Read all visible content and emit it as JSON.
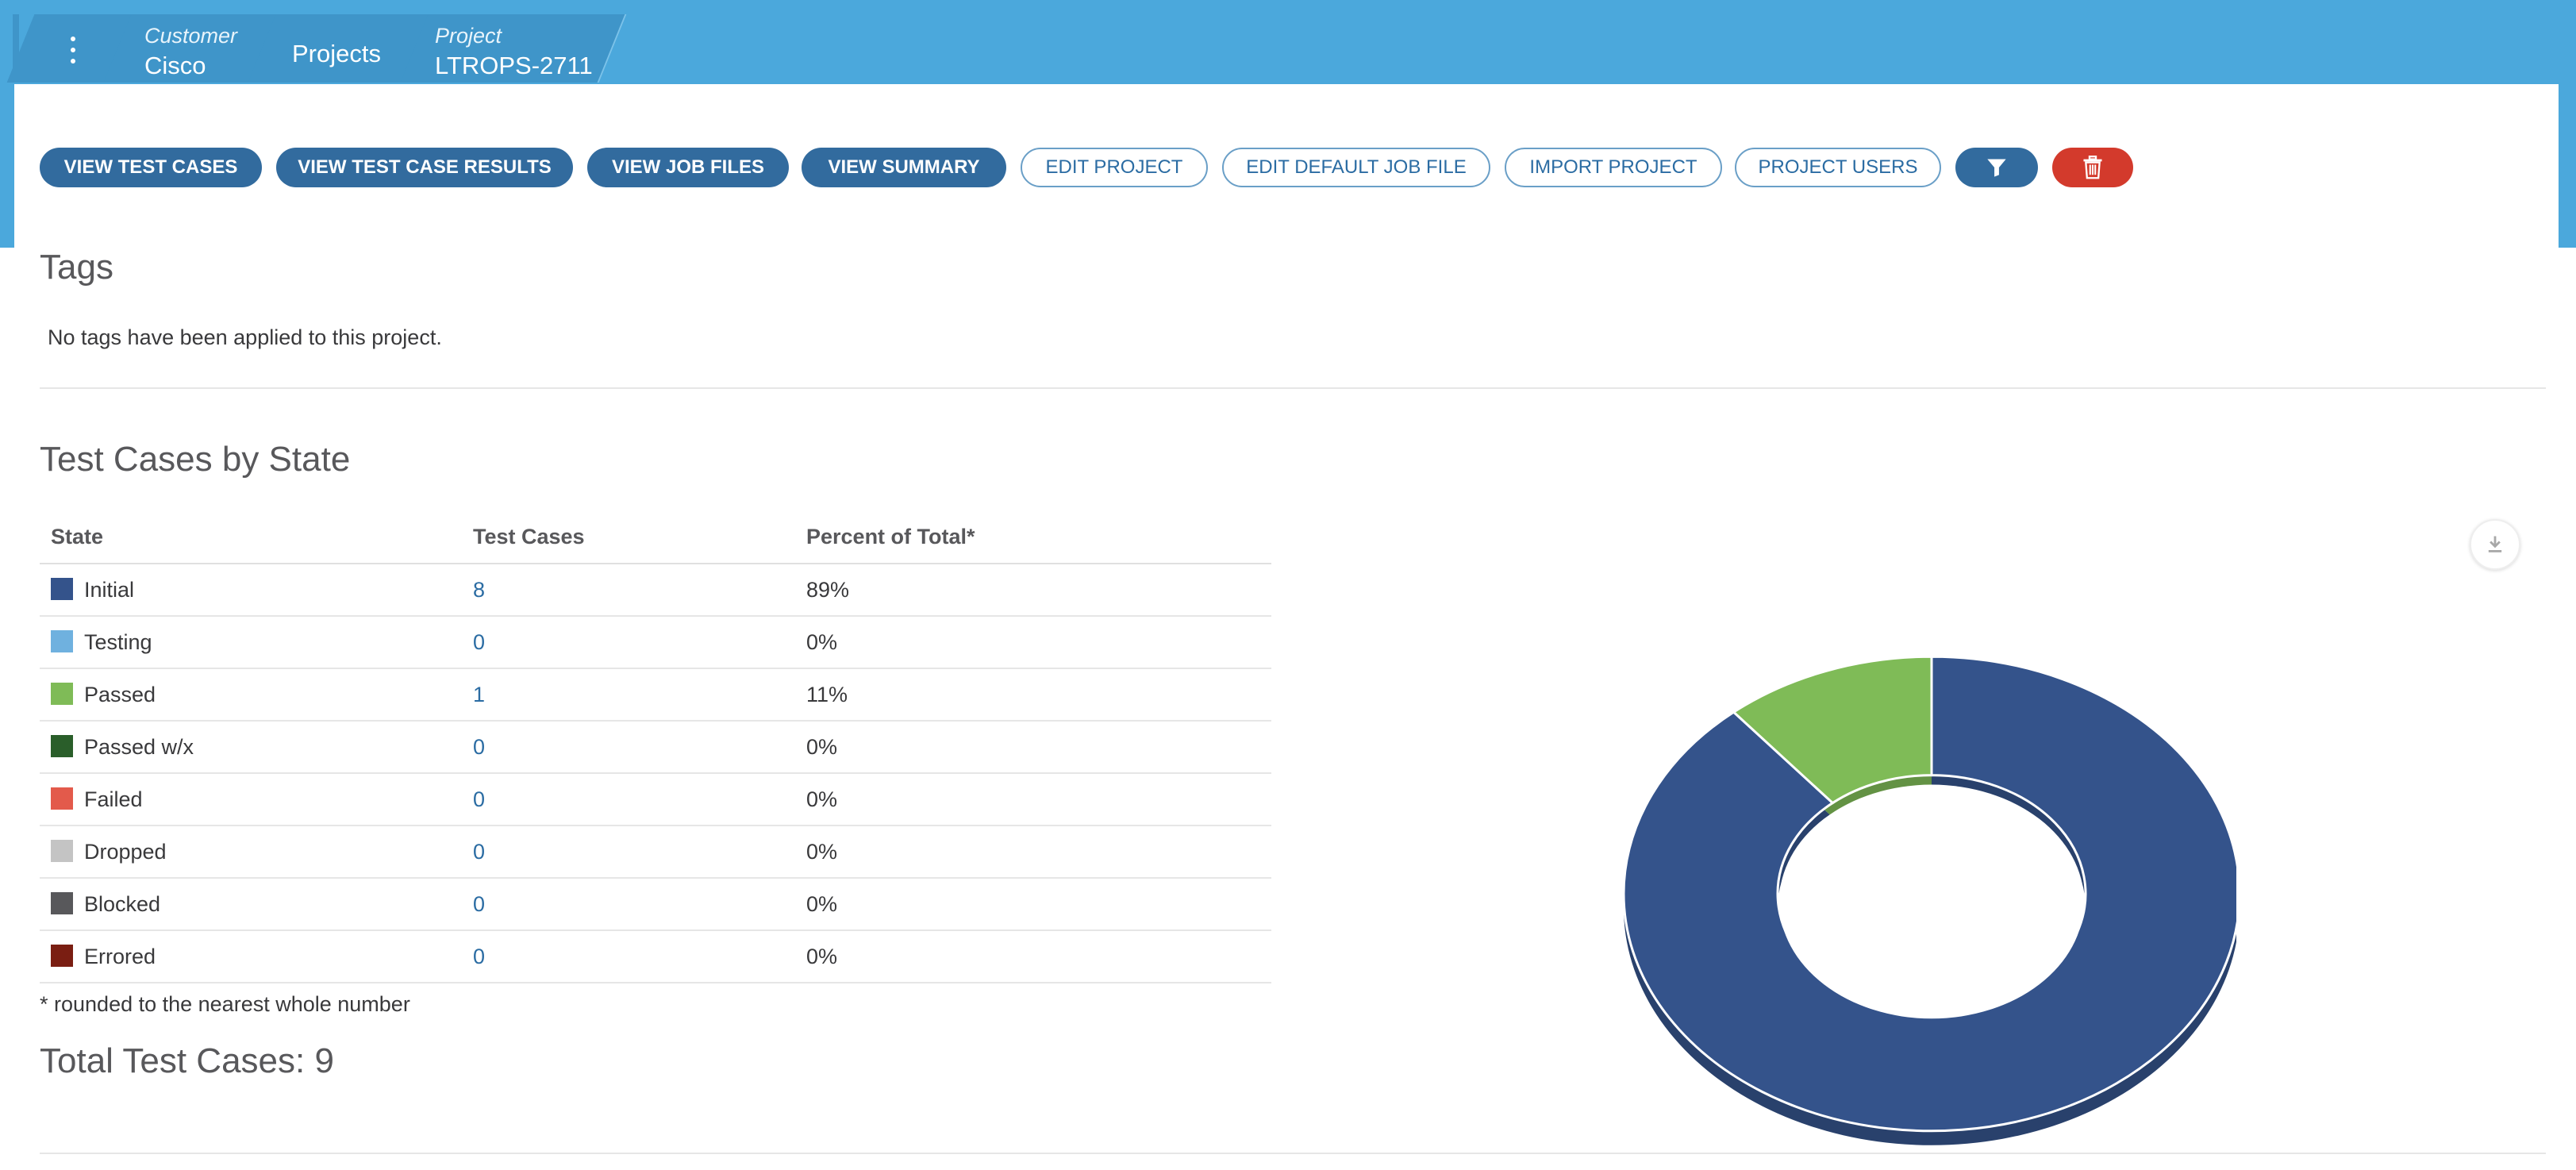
{
  "breadcrumb": {
    "customer_label": "Customer",
    "customer_value": "Cisco",
    "projects": "Projects",
    "project_label": "Project",
    "project_value": "LTROPS-2711"
  },
  "toolbar": {
    "view_test_cases": "VIEW TEST CASES",
    "view_results": "VIEW TEST CASE RESULTS",
    "view_job_files": "VIEW JOB FILES",
    "view_summary": "VIEW SUMMARY",
    "edit_project": "EDIT PROJECT",
    "edit_default_job_file": "EDIT DEFAULT JOB FILE",
    "import_project": "IMPORT PROJECT",
    "project_users": "PROJECT USERS",
    "filter_icon": "filter-icon",
    "delete_icon": "trash-icon"
  },
  "tags": {
    "title": "Tags",
    "empty_text": "No tags have been applied to this project."
  },
  "state_section": {
    "title": "Test Cases by State",
    "headers": [
      "State",
      "Test Cases",
      "Percent of Total*"
    ],
    "rows": [
      {
        "state": "Initial",
        "count": "8",
        "percent": "89%",
        "color": "#34538b"
      },
      {
        "state": "Testing",
        "count": "0",
        "percent": "0%",
        "color": "#6fb1df"
      },
      {
        "state": "Passed",
        "count": "1",
        "percent": "11%",
        "color": "#7fbb57"
      },
      {
        "state": "Passed w/x",
        "count": "0",
        "percent": "0%",
        "color": "#2a5e2a"
      },
      {
        "state": "Failed",
        "count": "0",
        "percent": "0%",
        "color": "#e35a4b"
      },
      {
        "state": "Dropped",
        "count": "0",
        "percent": "0%",
        "color": "#c4c4c4"
      },
      {
        "state": "Blocked",
        "count": "0",
        "percent": "0%",
        "color": "#58585b"
      },
      {
        "state": "Errored",
        "count": "0",
        "percent": "0%",
        "color": "#7a1e12"
      }
    ],
    "footnote": "* rounded to the nearest whole number",
    "total": "Total Test Cases: 9",
    "download_icon": "download-icon"
  },
  "chart_data": {
    "type": "pie",
    "categories": [
      "Initial",
      "Passed"
    ],
    "values": [
      8,
      1
    ],
    "colors": [
      "#34538b",
      "#7fbb57"
    ],
    "donut": true
  }
}
